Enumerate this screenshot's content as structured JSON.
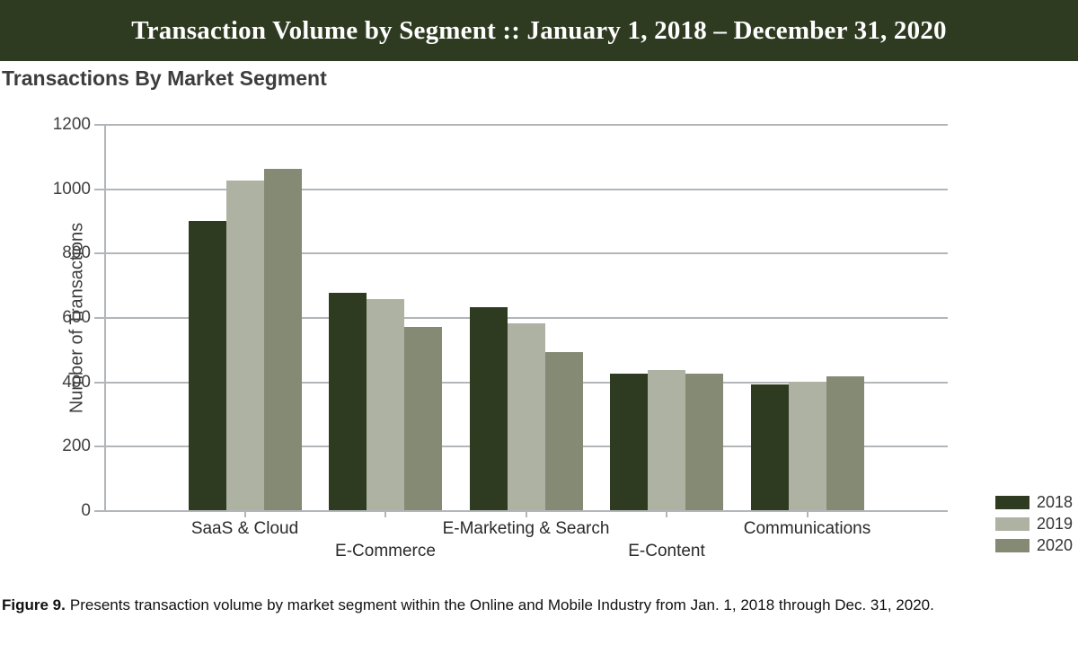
{
  "header": {
    "title": "Transaction Volume by Segment :: January 1, 2018 – December 31, 2020"
  },
  "subtitle": "Transactions By Market Segment",
  "chart_data": {
    "type": "bar",
    "title": "Transactions By Market Segment",
    "categories": [
      "SaaS & Cloud",
      "E-Commerce",
      "E-Marketing & Search",
      "E-Content",
      "Communications"
    ],
    "series": [
      {
        "name": "2018",
        "color": "#2f3b21",
        "values": [
          900,
          675,
          630,
          425,
          390
        ]
      },
      {
        "name": "2019",
        "color": "#aeb2a3",
        "values": [
          1025,
          655,
          580,
          435,
          400
        ]
      },
      {
        "name": "2020",
        "color": "#848a73",
        "values": [
          1060,
          570,
          490,
          425,
          415
        ]
      }
    ],
    "xlabel": "",
    "ylabel": "Number of Transactions",
    "ylim": [
      0,
      1200
    ],
    "ytick_step": 200,
    "yticks": [
      0,
      200,
      400,
      600,
      800,
      1000,
      1200
    ],
    "grid": true,
    "legend_position": "bottom-right",
    "category_labels_staggered": true
  },
  "colors": {
    "header_bg": "#2f3b21",
    "header_fg": "#ffffff",
    "grid": "#b3b6b9",
    "axis_text": "#404040",
    "category_text": "#2a2a2a",
    "subtitle_text": "#3d3d3d"
  },
  "caption": {
    "prefix": "Figure 9.",
    "text": "Presents transaction volume by market segment within the Online and Mobile Industry from Jan. 1, 2018 through Dec. 31, 2020."
  }
}
